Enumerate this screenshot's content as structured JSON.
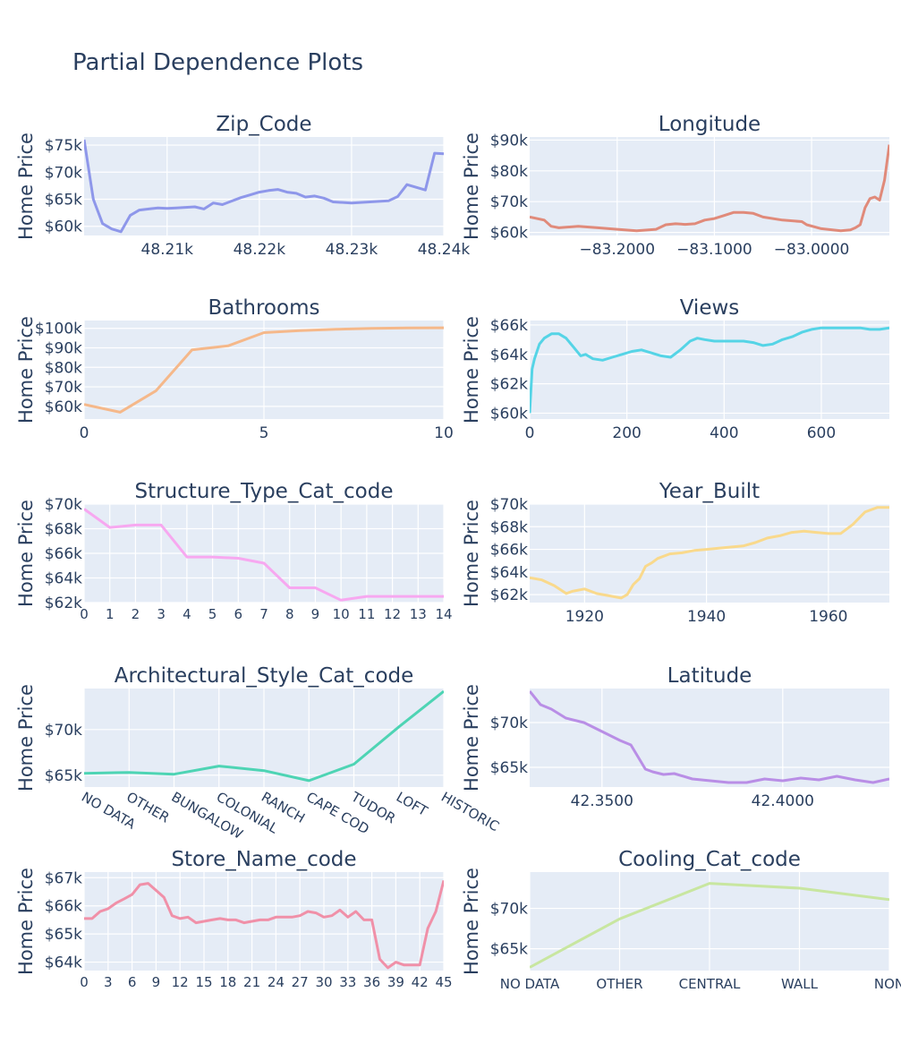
{
  "title": "Partial Dependence Plots",
  "chart_data": [
    {
      "type": "line",
      "title": "Zip_Code",
      "ylabel": "Home Price",
      "color": "#8e97ea",
      "xlim": [
        48201,
        48240
      ],
      "ylim": [
        58300,
        76500
      ],
      "xticks": [
        {
          "v": 48210,
          "label": "48.21k"
        },
        {
          "v": 48220,
          "label": "48.22k"
        },
        {
          "v": 48230,
          "label": "48.23k"
        },
        {
          "v": 48240,
          "label": "48.24k"
        }
      ],
      "yticks": [
        {
          "v": 60000,
          "label": "$60k"
        },
        {
          "v": 65000,
          "label": "$65k"
        },
        {
          "v": 70000,
          "label": "$70k"
        },
        {
          "v": 75000,
          "label": "$75k"
        }
      ],
      "x": [
        48201,
        48202,
        48203,
        48204,
        48205,
        48206,
        48207,
        48208,
        48209,
        48210,
        48211,
        48212,
        48213,
        48214,
        48215,
        48216,
        48218,
        48219,
        48220,
        48221,
        48222,
        48223,
        48224,
        48225,
        48226,
        48227,
        48228,
        48230,
        48232,
        48233,
        48234,
        48235,
        48236,
        48238,
        48239,
        48240
      ],
      "y": [
        76000,
        65000,
        60500,
        59500,
        59000,
        62000,
        63000,
        63200,
        63400,
        63300,
        63400,
        63500,
        63600,
        63200,
        64300,
        64000,
        65300,
        65800,
        66300,
        66600,
        66800,
        66300,
        66100,
        65400,
        65600,
        65200,
        64500,
        64300,
        64500,
        64600,
        64700,
        65500,
        67700,
        66700,
        73500,
        73400
      ]
    },
    {
      "type": "line",
      "title": "Longitude",
      "ylabel": "Home Price",
      "color": "#e08a7a",
      "xlim": [
        -83.29,
        -82.92
      ],
      "ylim": [
        59000,
        91000
      ],
      "xticks": [
        {
          "v": -83.2,
          "label": "−83.2000"
        },
        {
          "v": -83.1,
          "label": "−83.1000"
        },
        {
          "v": -83.0,
          "label": "−83.0000"
        }
      ],
      "yticks": [
        {
          "v": 60000,
          "label": "$60k"
        },
        {
          "v": 70000,
          "label": "$70k"
        },
        {
          "v": 80000,
          "label": "$80k"
        },
        {
          "v": 90000,
          "label": "$90k"
        }
      ],
      "x": [
        -83.29,
        -83.275,
        -83.268,
        -83.26,
        -83.24,
        -83.22,
        -83.2,
        -83.18,
        -83.16,
        -83.15,
        -83.14,
        -83.13,
        -83.12,
        -83.11,
        -83.1,
        -83.09,
        -83.08,
        -83.07,
        -83.06,
        -83.05,
        -83.03,
        -83.01,
        -83.005,
        -82.99,
        -82.97,
        -82.96,
        -82.955,
        -82.95,
        -82.945,
        -82.94,
        -82.935,
        -82.93,
        -82.925,
        -82.92
      ],
      "y": [
        65000,
        64000,
        62000,
        61500,
        62000,
        61500,
        61000,
        60500,
        61000,
        62500,
        62800,
        62600,
        62800,
        64000,
        64500,
        65500,
        66500,
        66500,
        66200,
        65000,
        64000,
        63500,
        62500,
        61200,
        60500,
        60800,
        61500,
        62500,
        68000,
        71000,
        71500,
        70500,
        77000,
        88500
      ]
    },
    {
      "type": "line",
      "title": "Bathrooms",
      "ylabel": "Home Price",
      "color": "#f5b88a",
      "xlim": [
        0,
        10
      ],
      "ylim": [
        53500,
        104000
      ],
      "xticks": [
        {
          "v": 0,
          "label": "0"
        },
        {
          "v": 5,
          "label": "5"
        },
        {
          "v": 10,
          "label": "10"
        }
      ],
      "yticks": [
        {
          "v": 60000,
          "label": "$60k"
        },
        {
          "v": 70000,
          "label": "$70k"
        },
        {
          "v": 80000,
          "label": "$80k"
        },
        {
          "v": 90000,
          "label": "$90k"
        },
        {
          "v": 100000,
          "label": "$100k"
        }
      ],
      "x": [
        0,
        1,
        2,
        3,
        4,
        5,
        6,
        7,
        8,
        9,
        10
      ],
      "y": [
        61000,
        57000,
        68000,
        89000,
        91000,
        97800,
        98800,
        99500,
        100000,
        100200,
        100300
      ]
    },
    {
      "type": "line",
      "title": "Views",
      "ylabel": "Home Price",
      "color": "#55d4e6",
      "xlim": [
        0,
        740
      ],
      "ylim": [
        59600,
        66300
      ],
      "xticks": [
        {
          "v": 0,
          "label": "0"
        },
        {
          "v": 200,
          "label": "200"
        },
        {
          "v": 400,
          "label": "400"
        },
        {
          "v": 600,
          "label": "600"
        }
      ],
      "yticks": [
        {
          "v": 60000,
          "label": "$60k"
        },
        {
          "v": 62000,
          "label": "$62k"
        },
        {
          "v": 64000,
          "label": "$64k"
        },
        {
          "v": 66000,
          "label": "$66k"
        }
      ],
      "x": [
        0,
        5,
        10,
        20,
        30,
        45,
        60,
        75,
        90,
        105,
        115,
        130,
        150,
        170,
        190,
        210,
        230,
        250,
        270,
        290,
        310,
        330,
        345,
        360,
        380,
        400,
        420,
        440,
        460,
        480,
        500,
        520,
        540,
        560,
        580,
        600,
        620,
        640,
        660,
        680,
        700,
        720,
        740
      ],
      "y": [
        60000,
        63000,
        63700,
        64700,
        65100,
        65400,
        65400,
        65100,
        64500,
        63900,
        64000,
        63700,
        63600,
        63800,
        64000,
        64200,
        64300,
        64100,
        63900,
        63800,
        64300,
        64900,
        65100,
        65000,
        64900,
        64900,
        64900,
        64900,
        64800,
        64600,
        64700,
        65000,
        65200,
        65500,
        65700,
        65800,
        65800,
        65800,
        65800,
        65800,
        65700,
        65700,
        65800
      ]
    },
    {
      "type": "line",
      "title": "Structure_Type_Cat_code",
      "ylabel": "Home Price",
      "color": "#f7a8f0",
      "xlim": [
        0,
        14
      ],
      "ylim": [
        62000,
        70000
      ],
      "xticks": [
        {
          "v": 0,
          "label": "0"
        },
        {
          "v": 1,
          "label": "1"
        },
        {
          "v": 2,
          "label": "2"
        },
        {
          "v": 3,
          "label": "3"
        },
        {
          "v": 4,
          "label": "4"
        },
        {
          "v": 5,
          "label": "5"
        },
        {
          "v": 6,
          "label": "6"
        },
        {
          "v": 7,
          "label": "7"
        },
        {
          "v": 8,
          "label": "8"
        },
        {
          "v": 9,
          "label": "9"
        },
        {
          "v": 10,
          "label": "10"
        },
        {
          "v": 11,
          "label": "11"
        },
        {
          "v": 12,
          "label": "12"
        },
        {
          "v": 13,
          "label": "13"
        },
        {
          "v": 14,
          "label": "14"
        }
      ],
      "yticks": [
        {
          "v": 62000,
          "label": "$62k"
        },
        {
          "v": 64000,
          "label": "$64k"
        },
        {
          "v": 66000,
          "label": "$66k"
        },
        {
          "v": 68000,
          "label": "$68k"
        },
        {
          "v": 70000,
          "label": "$70k"
        }
      ],
      "x": [
        0,
        1,
        2,
        3,
        4,
        5,
        6,
        7,
        8,
        9,
        10,
        11,
        12,
        13,
        14
      ],
      "y": [
        69600,
        68100,
        68300,
        68300,
        65700,
        65700,
        65600,
        65200,
        63200,
        63200,
        62200,
        62500,
        62500,
        62500,
        62500
      ]
    },
    {
      "type": "line",
      "title": "Year_Built",
      "ylabel": "Home Price",
      "color": "#f9d98c",
      "xlim": [
        1911,
        1970
      ],
      "ylim": [
        61300,
        70000
      ],
      "xticks": [
        {
          "v": 1920,
          "label": "1920"
        },
        {
          "v": 1940,
          "label": "1940"
        },
        {
          "v": 1960,
          "label": "1960"
        }
      ],
      "yticks": [
        {
          "v": 62000,
          "label": "$62k"
        },
        {
          "v": 64000,
          "label": "$64k"
        },
        {
          "v": 66000,
          "label": "$66k"
        },
        {
          "v": 68000,
          "label": "$68k"
        },
        {
          "v": 70000,
          "label": "$70k"
        }
      ],
      "x": [
        1911,
        1913,
        1915,
        1917,
        1918,
        1920,
        1922,
        1924,
        1926,
        1927,
        1928,
        1929,
        1930,
        1931,
        1932,
        1934,
        1936,
        1938,
        1940,
        1942,
        1944,
        1946,
        1948,
        1950,
        1952,
        1954,
        1956,
        1958,
        1960,
        1962,
        1964,
        1966,
        1968,
        1970
      ],
      "y": [
        63500,
        63300,
        62800,
        62100,
        62300,
        62500,
        62100,
        61900,
        61700,
        62000,
        62900,
        63400,
        64500,
        64800,
        65200,
        65600,
        65700,
        65900,
        66000,
        66100,
        66200,
        66300,
        66600,
        67000,
        67200,
        67500,
        67600,
        67500,
        67400,
        67400,
        68200,
        69300,
        69700,
        69700
      ]
    },
    {
      "type": "line",
      "title": "Architectural_Style_Cat_code",
      "ylabel": "Home Price",
      "color": "#4ed4b4",
      "categories": [
        "NO DATA",
        "OTHER",
        "BUNGALOW",
        "COLONIAL",
        "RANCH",
        "CAPE COD",
        "TUDOR",
        "LOFT",
        "HISTORIC"
      ],
      "ylim": [
        63700,
        74500
      ],
      "yticks": [
        {
          "v": 65000,
          "label": "$65k"
        },
        {
          "v": 70000,
          "label": "$70k"
        }
      ],
      "values": [
        65200,
        65300,
        65100,
        66000,
        65500,
        64400,
        66200,
        70300,
        74200
      ]
    },
    {
      "type": "line",
      "title": "Latitude",
      "ylabel": "Home Price",
      "color": "#b98ee6",
      "xlim": [
        42.33,
        42.4295
      ],
      "ylim": [
        62800,
        73800
      ],
      "xticks": [
        {
          "v": 42.35,
          "label": "42.3500"
        },
        {
          "v": 42.4,
          "label": "42.4000"
        }
      ],
      "yticks": [
        {
          "v": 65000,
          "label": "$65k"
        },
        {
          "v": 70000,
          "label": "$70k"
        }
      ],
      "x": [
        42.33,
        42.333,
        42.336,
        42.34,
        42.345,
        42.35,
        42.355,
        42.358,
        42.362,
        42.364,
        42.367,
        42.37,
        42.375,
        42.38,
        42.385,
        42.39,
        42.395,
        42.4,
        42.405,
        42.41,
        42.415,
        42.42,
        42.425,
        42.4295
      ],
      "y": [
        73500,
        72000,
        71500,
        70500,
        70000,
        69000,
        68000,
        67500,
        64800,
        64500,
        64200,
        64300,
        63700,
        63500,
        63300,
        63300,
        63700,
        63500,
        63800,
        63600,
        64000,
        63600,
        63300,
        63700
      ]
    },
    {
      "type": "line",
      "title": "Store_Name_code",
      "ylabel": "Home Price",
      "color": "#f090a8",
      "xlim": [
        0,
        45
      ],
      "ylim": [
        63700,
        67200
      ],
      "xticks": [
        {
          "v": 0,
          "label": "0"
        },
        {
          "v": 3,
          "label": "3"
        },
        {
          "v": 6,
          "label": "6"
        },
        {
          "v": 9,
          "label": "9"
        },
        {
          "v": 12,
          "label": "12"
        },
        {
          "v": 15,
          "label": "15"
        },
        {
          "v": 18,
          "label": "18"
        },
        {
          "v": 21,
          "label": "21"
        },
        {
          "v": 24,
          "label": "24"
        },
        {
          "v": 27,
          "label": "27"
        },
        {
          "v": 30,
          "label": "30"
        },
        {
          "v": 33,
          "label": "33"
        },
        {
          "v": 36,
          "label": "36"
        },
        {
          "v": 39,
          "label": "39"
        },
        {
          "v": 42,
          "label": "42"
        },
        {
          "v": 45,
          "label": "45"
        }
      ],
      "yticks": [
        {
          "v": 64000,
          "label": "$64k"
        },
        {
          "v": 65000,
          "label": "$65k"
        },
        {
          "v": 66000,
          "label": "$66k"
        },
        {
          "v": 67000,
          "label": "$67k"
        }
      ],
      "x": [
        0,
        1,
        2,
        3,
        4,
        5,
        6,
        7,
        8,
        9,
        10,
        11,
        12,
        13,
        14,
        15,
        16,
        17,
        18,
        19,
        20,
        21,
        22,
        23,
        24,
        25,
        26,
        27,
        28,
        29,
        30,
        31,
        32,
        33,
        34,
        35,
        36,
        37,
        38,
        39,
        40,
        41,
        42,
        43,
        44,
        45
      ],
      "y": [
        65550,
        65550,
        65800,
        65900,
        66100,
        66250,
        66400,
        66750,
        66800,
        66550,
        66300,
        65650,
        65550,
        65600,
        65400,
        65450,
        65500,
        65550,
        65500,
        65500,
        65400,
        65450,
        65500,
        65500,
        65600,
        65600,
        65600,
        65650,
        65800,
        65750,
        65600,
        65650,
        65850,
        65600,
        65800,
        65500,
        65500,
        64100,
        63800,
        64000,
        63900,
        63900,
        63900,
        65200,
        65800,
        66900
      ]
    },
    {
      "type": "line",
      "title": "Cooling_Cat_code",
      "ylabel": "Home Price",
      "color": "#c8e6a0",
      "categories": [
        "NO DATA",
        "OTHER",
        "CENTRAL",
        "WALL",
        "NON"
      ],
      "ylim": [
        62300,
        74500
      ],
      "yticks": [
        {
          "v": 65000,
          "label": "$65k"
        },
        {
          "v": 70000,
          "label": "$70k"
        }
      ],
      "values": [
        62700,
        68700,
        73100,
        72500,
        71100
      ]
    }
  ]
}
